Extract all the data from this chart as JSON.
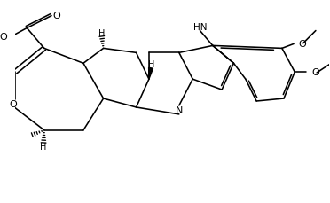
{
  "figsize": [
    3.72,
    2.3
  ],
  "dpi": 100,
  "xlim": [
    0,
    10
  ],
  "ylim": [
    0,
    6.0
  ]
}
